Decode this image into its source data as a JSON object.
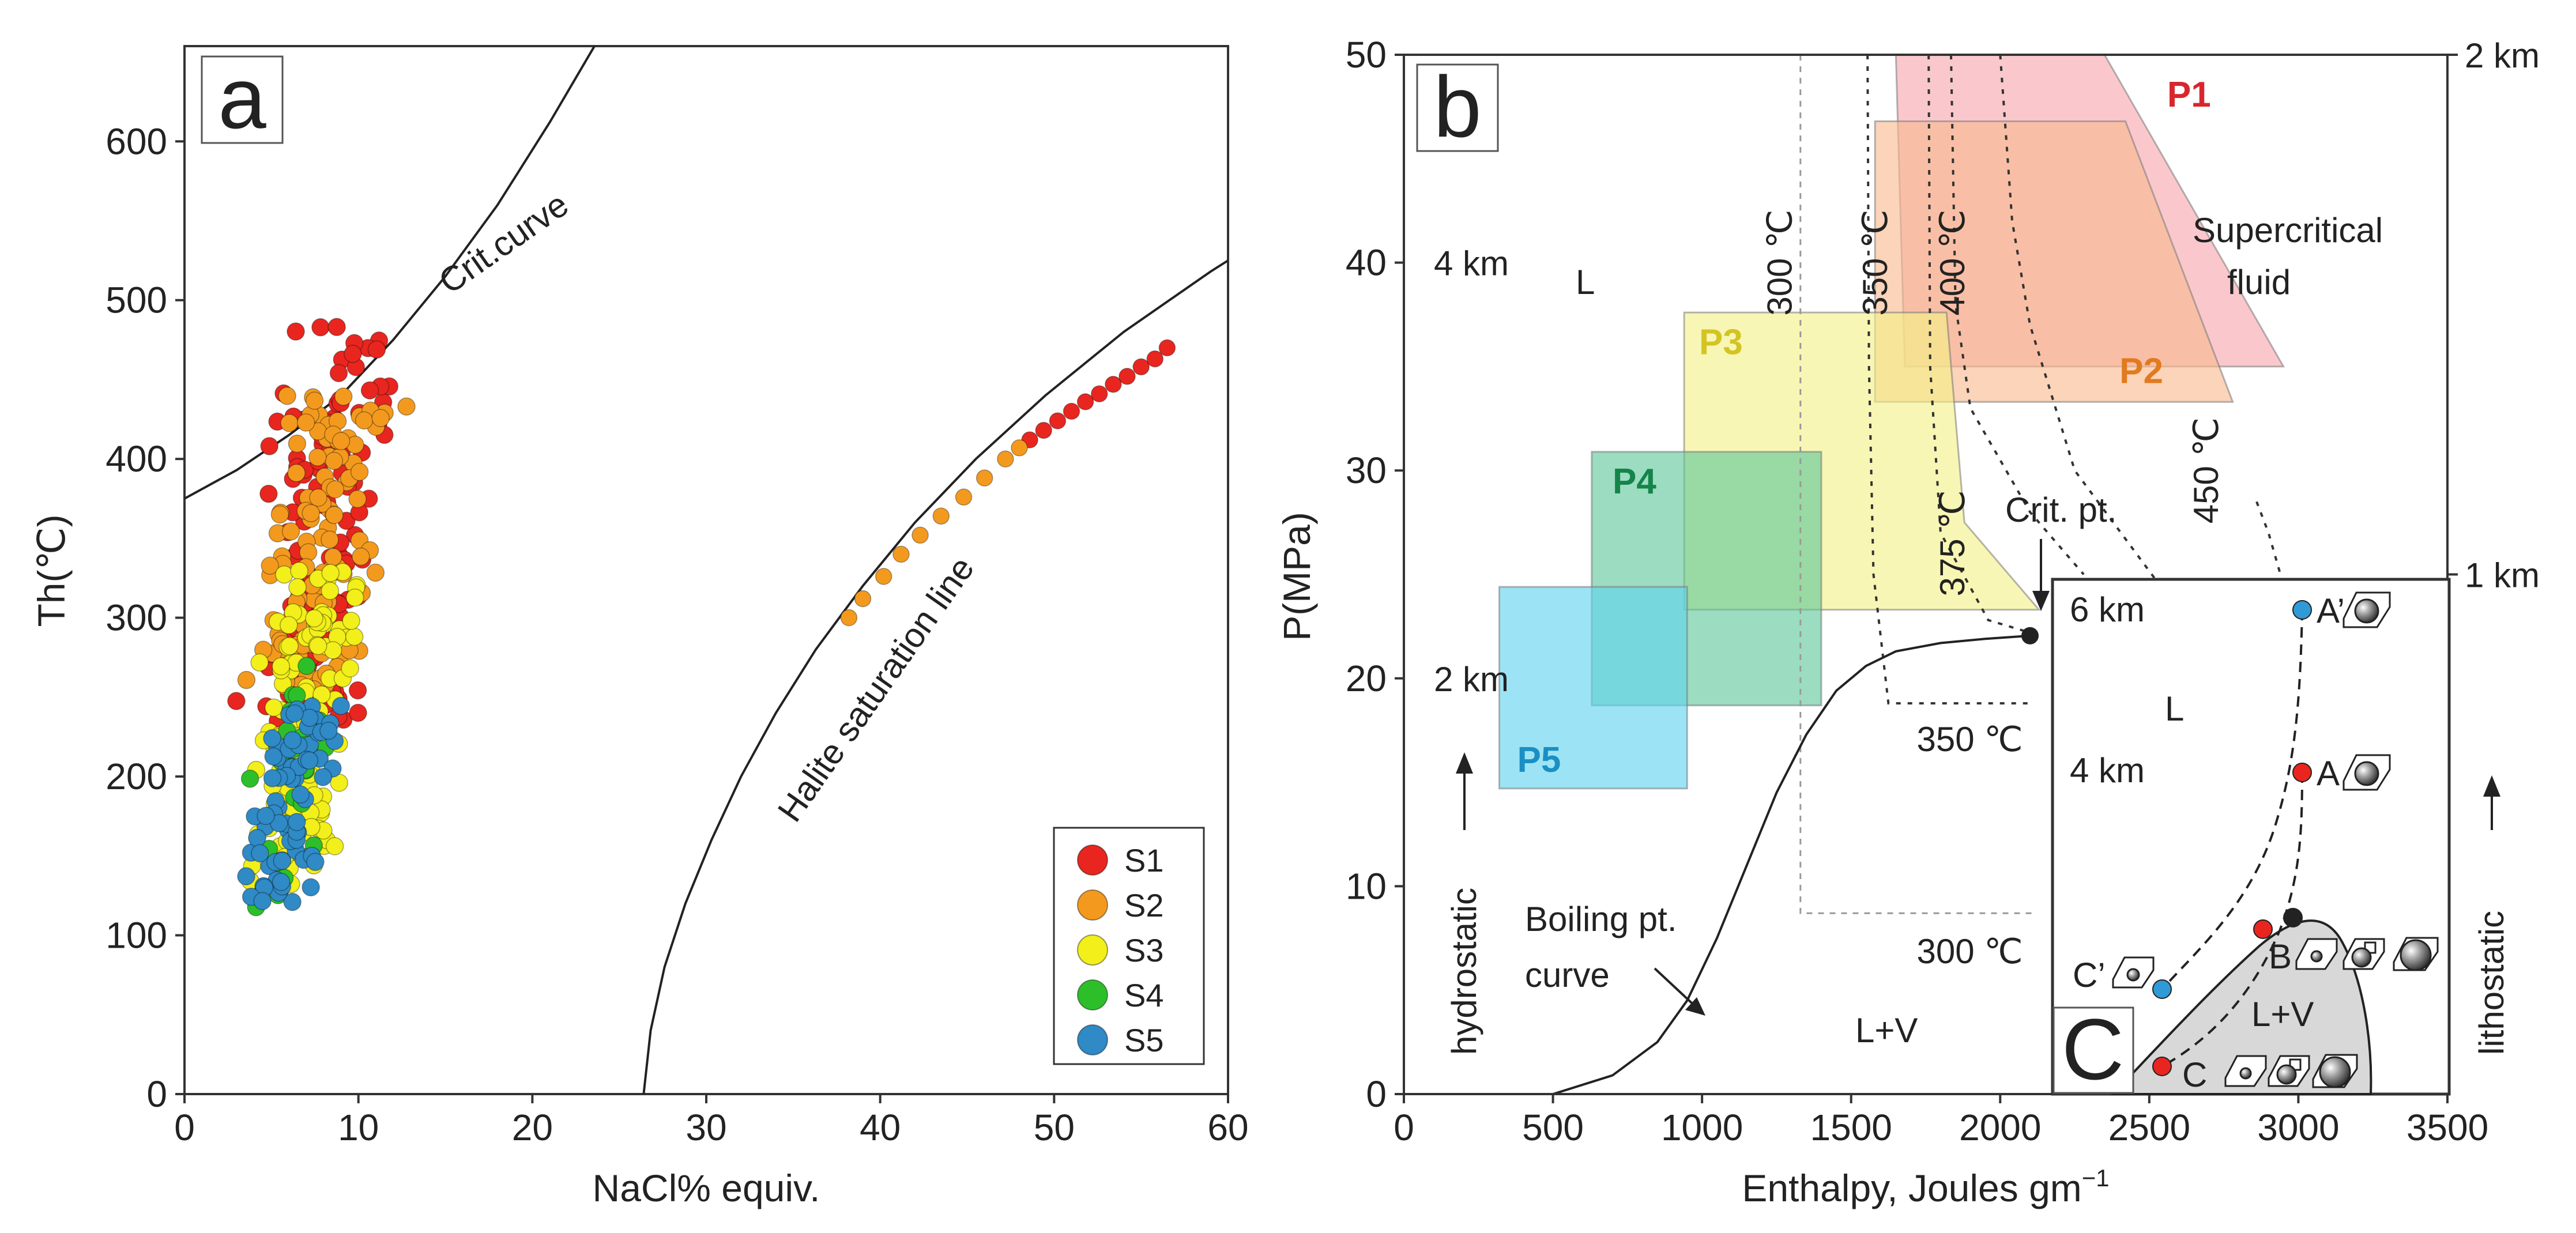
{
  "chart_data": [
    {
      "panel": "a",
      "type": "scatter",
      "panel_label": "a",
      "xlabel": "NaCl% equiv.",
      "ylabel": "Th(℃)",
      "xlim": [
        0,
        60
      ],
      "ylim": [
        0,
        660
      ],
      "xticks": [
        "0",
        "10",
        "20",
        "30",
        "40",
        "50",
        "60"
      ],
      "yticks": [
        "0",
        "100",
        "200",
        "300",
        "400",
        "500",
        "600"
      ],
      "curves": [
        {
          "name": "Crit.curve",
          "label": "Crit.curve",
          "points": [
            [
              0,
              375
            ],
            [
              3,
              393
            ],
            [
              6,
              415
            ],
            [
              9,
              440
            ],
            [
              12,
              475
            ],
            [
              15,
              515
            ],
            [
              18,
              560
            ],
            [
              21,
              612
            ],
            [
              24,
              668
            ]
          ]
        },
        {
          "name": "Halite saturation line",
          "label": "Halite saturation line",
          "points": [
            [
              26.4,
              0
            ],
            [
              26.8,
              40
            ],
            [
              27.6,
              80
            ],
            [
              28.8,
              120
            ],
            [
              30.3,
              160
            ],
            [
              32,
              200
            ],
            [
              34,
              240
            ],
            [
              36.3,
              280
            ],
            [
              39,
              320
            ],
            [
              42,
              360
            ],
            [
              45.5,
              400
            ],
            [
              49.5,
              440
            ],
            [
              54,
              480
            ],
            [
              59,
              518
            ],
            [
              60,
              525
            ]
          ]
        }
      ],
      "legend": {
        "position": "bottom-right",
        "entries": [
          "S1",
          "S2",
          "S3",
          "S4",
          "S5"
        ]
      },
      "series": [
        {
          "name": "S1",
          "color": "#e8261f",
          "seed": 11,
          "n": 130,
          "xmin": 3.2,
          "xmax": 12.5,
          "ymin": 230,
          "ymax": 485,
          "line_points": [
            [
              48.6,
              412
            ],
            [
              49.4,
              418
            ],
            [
              50.2,
              424
            ],
            [
              51.0,
              430
            ],
            [
              51.8,
              436
            ],
            [
              52.6,
              441
            ],
            [
              53.4,
              447
            ],
            [
              54.2,
              452
            ],
            [
              55.0,
              458
            ],
            [
              55.8,
              463
            ],
            [
              56.5,
              470
            ]
          ]
        },
        {
          "name": "S2",
          "color": "#f39a1e",
          "seed": 23,
          "n": 120,
          "xmin": 3.5,
          "xmax": 12.5,
          "ymin": 250,
          "ymax": 440,
          "line_points": [
            [
              38.2,
              300
            ],
            [
              39.0,
              312
            ],
            [
              40.2,
              326
            ],
            [
              41.2,
              340
            ],
            [
              42.3,
              352
            ],
            [
              43.5,
              364
            ],
            [
              44.8,
              376
            ],
            [
              46.0,
              388
            ],
            [
              47.2,
              400
            ],
            [
              48.0,
              407
            ]
          ]
        },
        {
          "name": "S3",
          "color": "#f2ef1a",
          "seed": 37,
          "n": 130,
          "xmin": 3.0,
          "xmax": 10.5,
          "ymin": 130,
          "ymax": 330,
          "line_points": []
        },
        {
          "name": "S4",
          "color": "#2dbf2a",
          "seed": 41,
          "n": 25,
          "xmin": 3.2,
          "xmax": 8.5,
          "ymin": 115,
          "ymax": 280,
          "line_points": []
        },
        {
          "name": "S5",
          "color": "#2f8ac6",
          "seed": 53,
          "n": 75,
          "xmin": 3.3,
          "xmax": 9.2,
          "ymin": 120,
          "ymax": 245,
          "line_points": []
        }
      ]
    },
    {
      "panel": "b",
      "type": "line",
      "panel_label": "b",
      "xlabel": "Enthalpy, Joules gm",
      "xlabel_sup": "−1",
      "ylabel": "P(MPa)",
      "xlim": [
        0,
        3500
      ],
      "ylim": [
        0,
        50
      ],
      "xticks": [
        "0",
        "500",
        "1000",
        "1500",
        "2000",
        "2500",
        "3000",
        "3500"
      ],
      "yticks": [
        "0",
        "10",
        "20",
        "30",
        "40",
        "50"
      ],
      "regions": [
        {
          "name": "P1",
          "label": "P1",
          "color": "#f7a7ad",
          "label_color": "#d9262d",
          "polygon": [
            [
              1650,
              50
            ],
            [
              2350,
              50
            ],
            [
              2950,
              35
            ],
            [
              1680,
              35
            ]
          ],
          "label_at": [
            2560,
            47.5
          ]
        },
        {
          "name": "P2",
          "label": "P2",
          "color": "#f9b98e",
          "label_color": "#e27a1e",
          "polygon": [
            [
              1580,
              46.8
            ],
            [
              2420,
              46.8
            ],
            [
              2780,
              33.3
            ],
            [
              1580,
              33.3
            ]
          ],
          "label_at": [
            2400,
            34.2
          ]
        },
        {
          "name": "P3",
          "label": "P3",
          "color": "#f4f086",
          "label_color": "#d3c424",
          "polygon": [
            [
              940,
              37.6
            ],
            [
              1820,
              37.6
            ],
            [
              1880,
              27.5
            ],
            [
              2130,
              23.3
            ],
            [
              940,
              23.3
            ]
          ],
          "label_at": [
            990,
            35.6
          ]
        },
        {
          "name": "P4",
          "label": "P4",
          "color": "#5fc69a",
          "label_color": "#14844a",
          "polygon": [
            [
              630,
              30.9
            ],
            [
              1400,
              30.9
            ],
            [
              1400,
              18.7
            ],
            [
              630,
              18.7
            ]
          ],
          "label_at": [
            700,
            28.9
          ]
        },
        {
          "name": "P5",
          "label": "P5",
          "color": "#5fd3ef",
          "label_color": "#1b8fc4",
          "polygon": [
            [
              320,
              24.4
            ],
            [
              950,
              24.4
            ],
            [
              950,
              14.7
            ],
            [
              320,
              14.7
            ]
          ],
          "label_at": [
            380,
            15.5
          ]
        }
      ],
      "isotherms": [
        {
          "label": "300 ℃",
          "points": [
            [
              1330,
              50
            ],
            [
              1330,
              8.7
            ],
            [
              2110,
              8.7
            ]
          ]
        },
        {
          "label": "350 ℃",
          "points": [
            [
              1555,
              50
            ],
            [
              1560,
              35
            ],
            [
              1575,
              25
            ],
            [
              1625,
              18.8
            ],
            [
              2110,
              18.8
            ]
          ]
        },
        {
          "label": "375 ℃",
          "points": [
            [
              1760,
              50
            ],
            [
              1765,
              35
            ],
            [
              1800,
              27
            ],
            [
              1960,
              22.8
            ],
            [
              2100,
              22.2
            ]
          ]
        },
        {
          "label": "400 ℃",
          "points": [
            [
              1835,
              50
            ],
            [
              1850,
              38
            ],
            [
              1900,
              33
            ],
            [
              2100,
              28
            ],
            [
              2280,
              25
            ]
          ]
        },
        {
          "label": "450 ℃",
          "points": [
            [
              2000,
              50
            ],
            [
              2040,
              42
            ],
            [
              2100,
              37
            ],
            [
              2250,
              30
            ],
            [
              2560,
              24
            ]
          ]
        },
        {
          "label": "",
          "points": [
            [
              2860,
              28.5
            ],
            [
              2900,
              27
            ],
            [
              2960,
              24
            ]
          ]
        }
      ],
      "isotherm_labels": [
        {
          "text": "300 ℃",
          "at": [
            1300,
            40
          ],
          "rotate": -90
        },
        {
          "text": "350 ℃",
          "at": [
            1620,
            40
          ],
          "rotate": -90
        },
        {
          "text": "400 ℃",
          "at": [
            1880,
            40
          ],
          "rotate": -90
        },
        {
          "text": "375 ℃",
          "at": [
            1880,
            26.5
          ],
          "rotate": -90
        },
        {
          "text": "450 ℃",
          "at": [
            2730,
            30
          ],
          "rotate": -90
        },
        {
          "text": "350 ℃",
          "at": [
            1720,
            16.5
          ],
          "rotate": 0
        },
        {
          "text": "300 ℃",
          "at": [
            1720,
            6.3
          ],
          "rotate": 0
        }
      ],
      "boiling_curve": {
        "label_line1": "Boiling pt.",
        "label_line2": "curve",
        "points": [
          [
            500,
            0
          ],
          [
            700,
            0.9
          ],
          [
            850,
            2.5
          ],
          [
            950,
            4.5
          ],
          [
            1050,
            7.5
          ],
          [
            1150,
            11
          ],
          [
            1250,
            14.5
          ],
          [
            1350,
            17.3
          ],
          [
            1450,
            19.4
          ],
          [
            1550,
            20.6
          ],
          [
            1650,
            21.3
          ],
          [
            1800,
            21.7
          ],
          [
            1950,
            21.9
          ],
          [
            2100,
            22.05
          ]
        ]
      },
      "critical_point": {
        "label": "Crit. pt.",
        "x": 2100,
        "y": 22.05
      },
      "texts": {
        "L": "L",
        "LV": "L+V",
        "supercritical1": "Supercritical",
        "supercritical2": "fluid",
        "hydrostatic": "hydrostatic",
        "lithostatic": "lithostatic"
      },
      "depth_left": [
        {
          "label": "4 km",
          "y": 40
        },
        {
          "label": "2 km",
          "y": 20
        }
      ],
      "depth_right": [
        {
          "label": "2 km",
          "y": 50
        },
        {
          "label": "1 km",
          "y": 25
        }
      ],
      "inset": {
        "panel_label": "c",
        "labels": {
          "L": "L",
          "LV": "L+V",
          "depth6": "6 km",
          "depth4": "4 km"
        },
        "points": [
          {
            "name": "A'",
            "label": "A’",
            "color": "#2f9ad6"
          },
          {
            "name": "A",
            "label": "A",
            "color": "#e8261f"
          },
          {
            "name": "B",
            "label": "B",
            "color": "#e8261f"
          },
          {
            "name": "crit",
            "label": "",
            "color": "#222222"
          },
          {
            "name": "C'",
            "label": "C’",
            "color": "#2f9ad6"
          },
          {
            "name": "C",
            "label": "C",
            "color": "#e8261f"
          }
        ]
      }
    }
  ]
}
